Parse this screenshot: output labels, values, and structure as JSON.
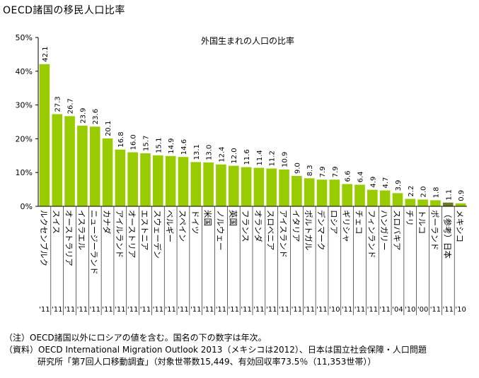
{
  "page_title": "OECD諸国の移民人口比率",
  "chart_data": {
    "type": "bar",
    "title": "外国生まれの人口の比率",
    "xlabel": "",
    "ylabel": "",
    "ylim": [
      0,
      50
    ],
    "yticks": [
      "0%",
      "10%",
      "20%",
      "30%",
      "40%",
      "50%"
    ],
    "grid": false,
    "bar_color": "#99cc00",
    "highlight_color": "#6b7a1f",
    "categories": [
      "ルクセンブルク",
      "スイス",
      "オーストラリア",
      "イスラエル",
      "ニュージーランド",
      "カナダ",
      "アイルランド",
      "オーストリア",
      "エストニア",
      "スウェーデン",
      "ベルギー",
      "スペイン",
      "ドイツ",
      "米国",
      "ノルウェー",
      "英国",
      "フランス",
      "オランダ",
      "スロベニア",
      "アイスランド",
      "イタリア",
      "ポルトガル",
      "デンマーク",
      "ロシア",
      "ギリシャ",
      "チェコ",
      "フィンランド",
      "ハンガリー",
      "スロバキア",
      "チリ",
      "トルコ",
      "ポーランド",
      "（参考）日本",
      "メキシコ"
    ],
    "values": [
      42.1,
      27.3,
      26.7,
      23.9,
      23.6,
      20.1,
      16.8,
      16.0,
      15.7,
      15.1,
      14.9,
      14.6,
      13.1,
      13.0,
      12.4,
      12.0,
      11.6,
      11.4,
      11.2,
      10.9,
      9.0,
      8.3,
      7.9,
      7.9,
      6.6,
      6.4,
      4.9,
      4.7,
      3.9,
      2.2,
      2.0,
      1.8,
      1.1,
      0.9
    ],
    "years": [
      "'11",
      "'11",
      "'11",
      "'11",
      "'11",
      "'11",
      "'11",
      "'11",
      "'11",
      "'11",
      "'11",
      "'11",
      "'11",
      "'11",
      "'11",
      "'11",
      "'11",
      "'11",
      "'11",
      "'11",
      "'11",
      "'11",
      "'11",
      "'10",
      "'11",
      "'11",
      "'11",
      "'11",
      "'04",
      "'10",
      "'00",
      "'11",
      "'11",
      "'10"
    ],
    "highlight_index": 32
  },
  "notes": {
    "note1": "（注）OECD諸国以外にロシアの値を含む。国名の下の数字は年次。",
    "note2": "（資料）OECD International Migration Outlook 2013（メキシコは2012）、日本は国立社会保障・人口問題",
    "note3": "研究所「第7回人口移動調査」（対象世帯数15,449、有効回収率73.5％（11,353世帯））"
  }
}
